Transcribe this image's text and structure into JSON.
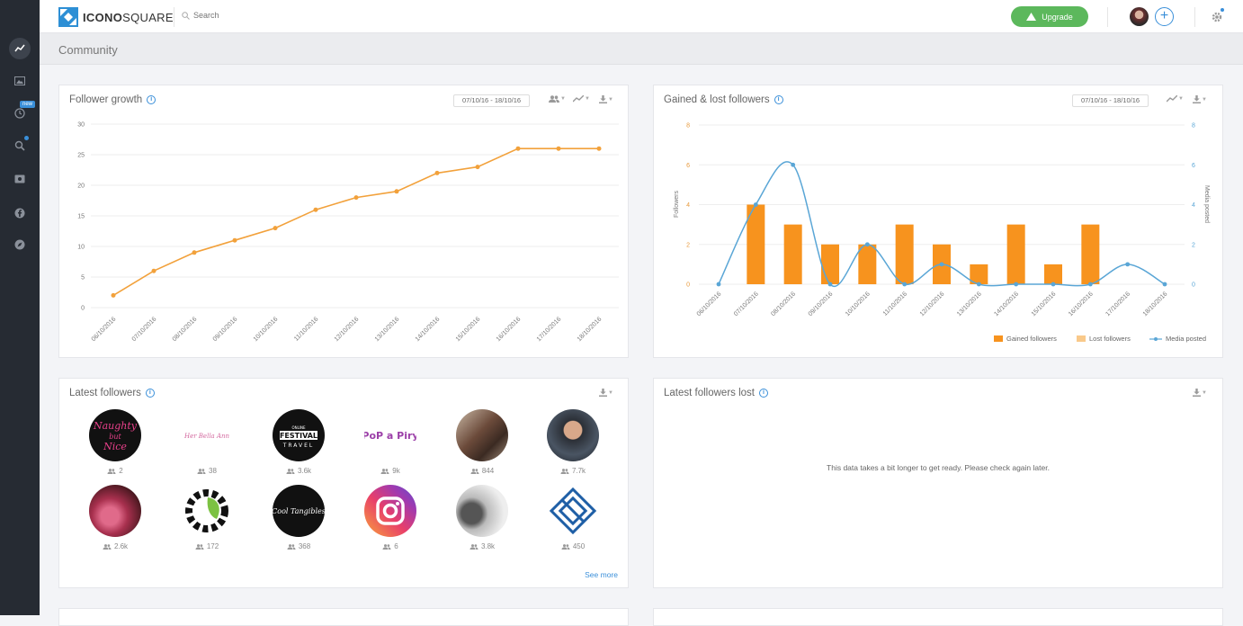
{
  "app": {
    "brand_bold": "ICONO",
    "brand_light": "SQUARE",
    "search_placeholder": "Search",
    "upgrade_label": "Upgrade"
  },
  "sidebar": {
    "badge": "new",
    "items": [
      "stats-icon",
      "media-icon",
      "history-icon",
      "search-icon",
      "contests-icon",
      "facebook-icon",
      "compass-icon"
    ]
  },
  "page": {
    "title": "Community"
  },
  "colors": {
    "accent_orange": "#f7931e",
    "accent_blue": "#5aa6d6",
    "upgrade_green": "#5cb85c"
  },
  "follower_growth": {
    "title": "Follower growth",
    "daterange": "07/10/16 - 18/10/16",
    "chart_data": {
      "type": "line",
      "x": [
        "06/10/2016",
        "07/10/2016",
        "08/10/2016",
        "09/10/2016",
        "10/10/2016",
        "11/10/2016",
        "12/10/2016",
        "13/10/2016",
        "14/10/2016",
        "15/10/2016",
        "16/10/2016",
        "17/10/2016",
        "18/10/2016"
      ],
      "series": [
        {
          "values": [
            2,
            6,
            9,
            11,
            13,
            16,
            18,
            19,
            22,
            23,
            26,
            26,
            26
          ]
        }
      ],
      "ylim": [
        0,
        30
      ],
      "yticks": [
        0,
        5,
        10,
        15,
        20,
        25,
        30
      ],
      "grid": true
    }
  },
  "gained_lost": {
    "title": "Gained & lost followers",
    "daterange": "07/10/16 - 18/10/16",
    "chart_data": {
      "type": "bar",
      "x": [
        "06/10/2016",
        "07/10/2016",
        "08/10/2016",
        "09/10/2016",
        "10/10/2016",
        "11/10/2016",
        "12/10/2016",
        "13/10/2016",
        "14/10/2016",
        "15/10/2016",
        "16/10/2016",
        "17/10/2016",
        "18/10/2016"
      ],
      "series": [
        {
          "name": "Gained followers",
          "type": "bar",
          "values": [
            0,
            4,
            3,
            2,
            2,
            3,
            2,
            1,
            3,
            1,
            3,
            0,
            0
          ]
        },
        {
          "name": "Lost followers",
          "type": "bar",
          "values": [
            0,
            0,
            0,
            0,
            0,
            0,
            0,
            0,
            0,
            0,
            0,
            0,
            0
          ]
        },
        {
          "name": "Media posted",
          "type": "line",
          "values": [
            0,
            4,
            6,
            0,
            2,
            0,
            1,
            0,
            0,
            0,
            0,
            1,
            0
          ]
        }
      ],
      "ylabel": "Followers",
      "y2label": "Media posted",
      "ylim": [
        0,
        8
      ],
      "yticks": [
        0,
        2,
        4,
        6,
        8
      ],
      "legend": "bottom-right"
    }
  },
  "latest_followers": {
    "title": "Latest followers",
    "see_more": "See more",
    "items": [
      {
        "count": "2"
      },
      {
        "count": "38"
      },
      {
        "count": "3.6k"
      },
      {
        "count": "9k"
      },
      {
        "count": "844"
      },
      {
        "count": "7.7k"
      },
      {
        "count": "2.6k"
      },
      {
        "count": "172"
      },
      {
        "count": "368"
      },
      {
        "count": "6"
      },
      {
        "count": "3.8k"
      },
      {
        "count": "450"
      }
    ],
    "avatar_text": {
      "a0": "Naughty but Nice",
      "a1": "Her Bella Ann",
      "a2": "FESTIVAL",
      "a2b": "TRAVEL",
      "a2c": "ONLINE",
      "a3": "PoP a Piry",
      "a8": "Cool Tangibles"
    }
  },
  "latest_lost": {
    "title": "Latest followers lost",
    "message": "This data takes a bit longer to get ready. Please check again later."
  }
}
